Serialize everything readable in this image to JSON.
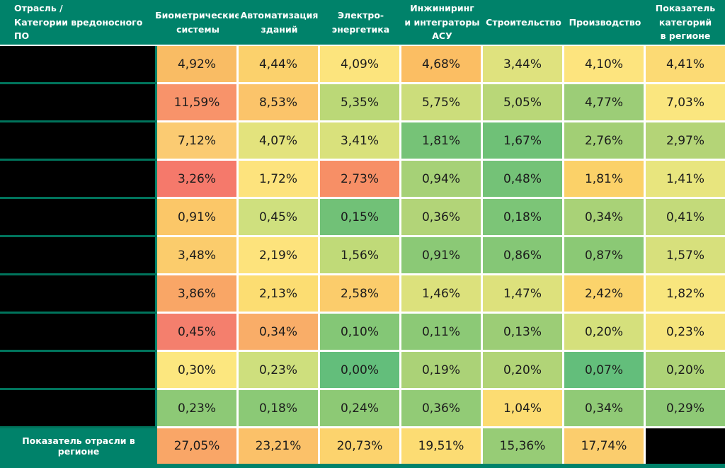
{
  "table": {
    "corner_header": "Отрасль /\nКатегории вредоносного ПО",
    "column_headers": [
      "Биометрические\nсистемы",
      "Автоматизация\nзданий",
      "Электро-\nэнергетика",
      "Инжиниринг\nи интеграторы\nАСУ",
      "Строительство",
      "Производство",
      "Показатель\nкатегорий\nв регионе"
    ],
    "rows": [
      {
        "label_redacted": true,
        "cells": [
          {
            "v": "4,92%",
            "c": "#F9BC64"
          },
          {
            "v": "4,44%",
            "c": "#FBD16C"
          },
          {
            "v": "4,09%",
            "c": "#FCE47D"
          },
          {
            "v": "4,68%",
            "c": "#FBBE63"
          },
          {
            "v": "3,44%",
            "c": "#DFE27E"
          },
          {
            "v": "4,10%",
            "c": "#FDE47E"
          },
          {
            "v": "4,41%",
            "c": "#FCDA74"
          }
        ]
      },
      {
        "label_redacted": true,
        "cells": [
          {
            "v": "11,59%",
            "c": "#F8936A"
          },
          {
            "v": "8,53%",
            "c": "#FBC46A"
          },
          {
            "v": "5,35%",
            "c": "#BBD877"
          },
          {
            "v": "5,75%",
            "c": "#CCDD7B"
          },
          {
            "v": "5,05%",
            "c": "#B9D778"
          },
          {
            "v": "4,77%",
            "c": "#9CCD77"
          },
          {
            "v": "7,03%",
            "c": "#FAE67F"
          }
        ]
      },
      {
        "label_redacted": true,
        "cells": [
          {
            "v": "7,12%",
            "c": "#FBCB72"
          },
          {
            "v": "4,07%",
            "c": "#E3E37D"
          },
          {
            "v": "3,41%",
            "c": "#D9E17C"
          },
          {
            "v": "1,81%",
            "c": "#76C377"
          },
          {
            "v": "1,67%",
            "c": "#6FC177"
          },
          {
            "v": "2,76%",
            "c": "#A2CF75"
          },
          {
            "v": "2,97%",
            "c": "#B4D477"
          }
        ]
      },
      {
        "label_redacted": true,
        "cells": [
          {
            "v": "3,26%",
            "c": "#F5796B"
          },
          {
            "v": "1,72%",
            "c": "#FDE37D"
          },
          {
            "v": "2,73%",
            "c": "#F78F66"
          },
          {
            "v": "0,94%",
            "c": "#A6D177"
          },
          {
            "v": "0,48%",
            "c": "#74C277"
          },
          {
            "v": "1,81%",
            "c": "#FBD168"
          },
          {
            "v": "1,41%",
            "c": "#E8E57E"
          }
        ]
      },
      {
        "label_redacted": true,
        "cells": [
          {
            "v": "0,91%",
            "c": "#FBC768"
          },
          {
            "v": "0,45%",
            "c": "#CFE07E"
          },
          {
            "v": "0,15%",
            "c": "#71C177"
          },
          {
            "v": "0,36%",
            "c": "#B2D478"
          },
          {
            "v": "0,18%",
            "c": "#7CC577"
          },
          {
            "v": "0,34%",
            "c": "#A9D277"
          },
          {
            "v": "0,41%",
            "c": "#C3DA7A"
          }
        ]
      },
      {
        "label_redacted": true,
        "cells": [
          {
            "v": "3,48%",
            "c": "#FBCC6C"
          },
          {
            "v": "2,19%",
            "c": "#FDE37C"
          },
          {
            "v": "1,56%",
            "c": "#C0DA78"
          },
          {
            "v": "0,91%",
            "c": "#8BC976"
          },
          {
            "v": "0,86%",
            "c": "#85C776"
          },
          {
            "v": "0,87%",
            "c": "#8BC975"
          },
          {
            "v": "1,57%",
            "c": "#D7E07C"
          }
        ]
      },
      {
        "label_redacted": true,
        "cells": [
          {
            "v": "3,86%",
            "c": "#F9A666"
          },
          {
            "v": "2,13%",
            "c": "#FCDD72"
          },
          {
            "v": "2,58%",
            "c": "#FBCC6B"
          },
          {
            "v": "1,46%",
            "c": "#DCE17C"
          },
          {
            "v": "1,47%",
            "c": "#DDE17C"
          },
          {
            "v": "2,42%",
            "c": "#FBD36B"
          },
          {
            "v": "1,82%",
            "c": "#F8E67E"
          }
        ]
      },
      {
        "label_redacted": true,
        "cells": [
          {
            "v": "0,45%",
            "c": "#F47F6D"
          },
          {
            "v": "0,34%",
            "c": "#F9AD68"
          },
          {
            "v": "0,10%",
            "c": "#84C776"
          },
          {
            "v": "0,11%",
            "c": "#8CC976"
          },
          {
            "v": "0,13%",
            "c": "#9CCD76"
          },
          {
            "v": "0,20%",
            "c": "#D5E07C"
          },
          {
            "v": "0,23%",
            "c": "#F6E47C"
          }
        ]
      },
      {
        "label_redacted": true,
        "cells": [
          {
            "v": "0,30%",
            "c": "#FCE77F"
          },
          {
            "v": "0,23%",
            "c": "#CEDF7D"
          },
          {
            "v": "0,00%",
            "c": "#63BE7B"
          },
          {
            "v": "0,19%",
            "c": "#ABD277"
          },
          {
            "v": "0,20%",
            "c": "#B1D477"
          },
          {
            "v": "0,07%",
            "c": "#63BE7B"
          },
          {
            "v": "0,20%",
            "c": "#AED377"
          }
        ]
      },
      {
        "label_redacted": true,
        "cells": [
          {
            "v": "0,23%",
            "c": "#8DC976"
          },
          {
            "v": "0,18%",
            "c": "#8BC976"
          },
          {
            "v": "0,24%",
            "c": "#8DC975"
          },
          {
            "v": "0,36%",
            "c": "#92CB76"
          },
          {
            "v": "1,04%",
            "c": "#FCDC72"
          },
          {
            "v": "0,34%",
            "c": "#90CA76"
          },
          {
            "v": "0,29%",
            "c": "#8EC976"
          }
        ]
      }
    ],
    "footer": {
      "label": "Показатель отрасли в регионе",
      "cells": [
        {
          "v": "27,05%",
          "c": "#F9A667"
        },
        {
          "v": "23,21%",
          "c": "#FBC169"
        },
        {
          "v": "20,73%",
          "c": "#FCD36D"
        },
        {
          "v": "19,51%",
          "c": "#FCDC73"
        },
        {
          "v": "15,36%",
          "c": "#97CC76"
        },
        {
          "v": "17,74%",
          "c": "#FBCD6D"
        },
        {
          "v": "",
          "c": "#000000",
          "redacted": true
        }
      ]
    }
  },
  "colors": {
    "header_teal": "#00826A",
    "separator_teal": "#00745C",
    "grid_white": "#FFFFFF",
    "redacted_black": "#000000",
    "text_light": "#FFFFFF",
    "text_dark": "#1C1C1C"
  },
  "chart_data": {
    "type": "heatmap",
    "title": "",
    "columns": [
      "Биометрические системы",
      "Автоматизация зданий",
      "Электро-энергетика",
      "Инжиниринг и интеграторы АСУ",
      "Строительство",
      "Производство",
      "Показатель категорий в регионе"
    ],
    "row_labels": [
      "",
      "",
      "",
      "",
      "",
      "",
      "",
      "",
      "",
      ""
    ],
    "row_labels_redacted": true,
    "values": [
      [
        4.92,
        4.44,
        4.09,
        4.68,
        3.44,
        4.1,
        4.41
      ],
      [
        11.59,
        8.53,
        5.35,
        5.75,
        5.05,
        4.77,
        7.03
      ],
      [
        7.12,
        4.07,
        3.41,
        1.81,
        1.67,
        2.76,
        2.97
      ],
      [
        3.26,
        1.72,
        2.73,
        0.94,
        0.48,
        1.81,
        1.41
      ],
      [
        0.91,
        0.45,
        0.15,
        0.36,
        0.18,
        0.34,
        0.41
      ],
      [
        3.48,
        2.19,
        1.56,
        0.91,
        0.86,
        0.87,
        1.57
      ],
      [
        3.86,
        2.13,
        2.58,
        1.46,
        1.47,
        2.42,
        1.82
      ],
      [
        0.45,
        0.34,
        0.1,
        0.11,
        0.13,
        0.2,
        0.23
      ],
      [
        0.3,
        0.23,
        0.0,
        0.19,
        0.2,
        0.07,
        0.2
      ],
      [
        0.23,
        0.18,
        0.24,
        0.36,
        1.04,
        0.34,
        0.29
      ]
    ],
    "totals_row": {
      "label": "Показатель отрасли в регионе",
      "values": [
        27.05,
        23.21,
        20.73,
        19.51,
        15.36,
        17.74,
        null
      ]
    },
    "value_format": "percent, comma decimal separator",
    "palette": "green-yellow-red 3-color scale",
    "legend_position": "none",
    "grid": true
  }
}
